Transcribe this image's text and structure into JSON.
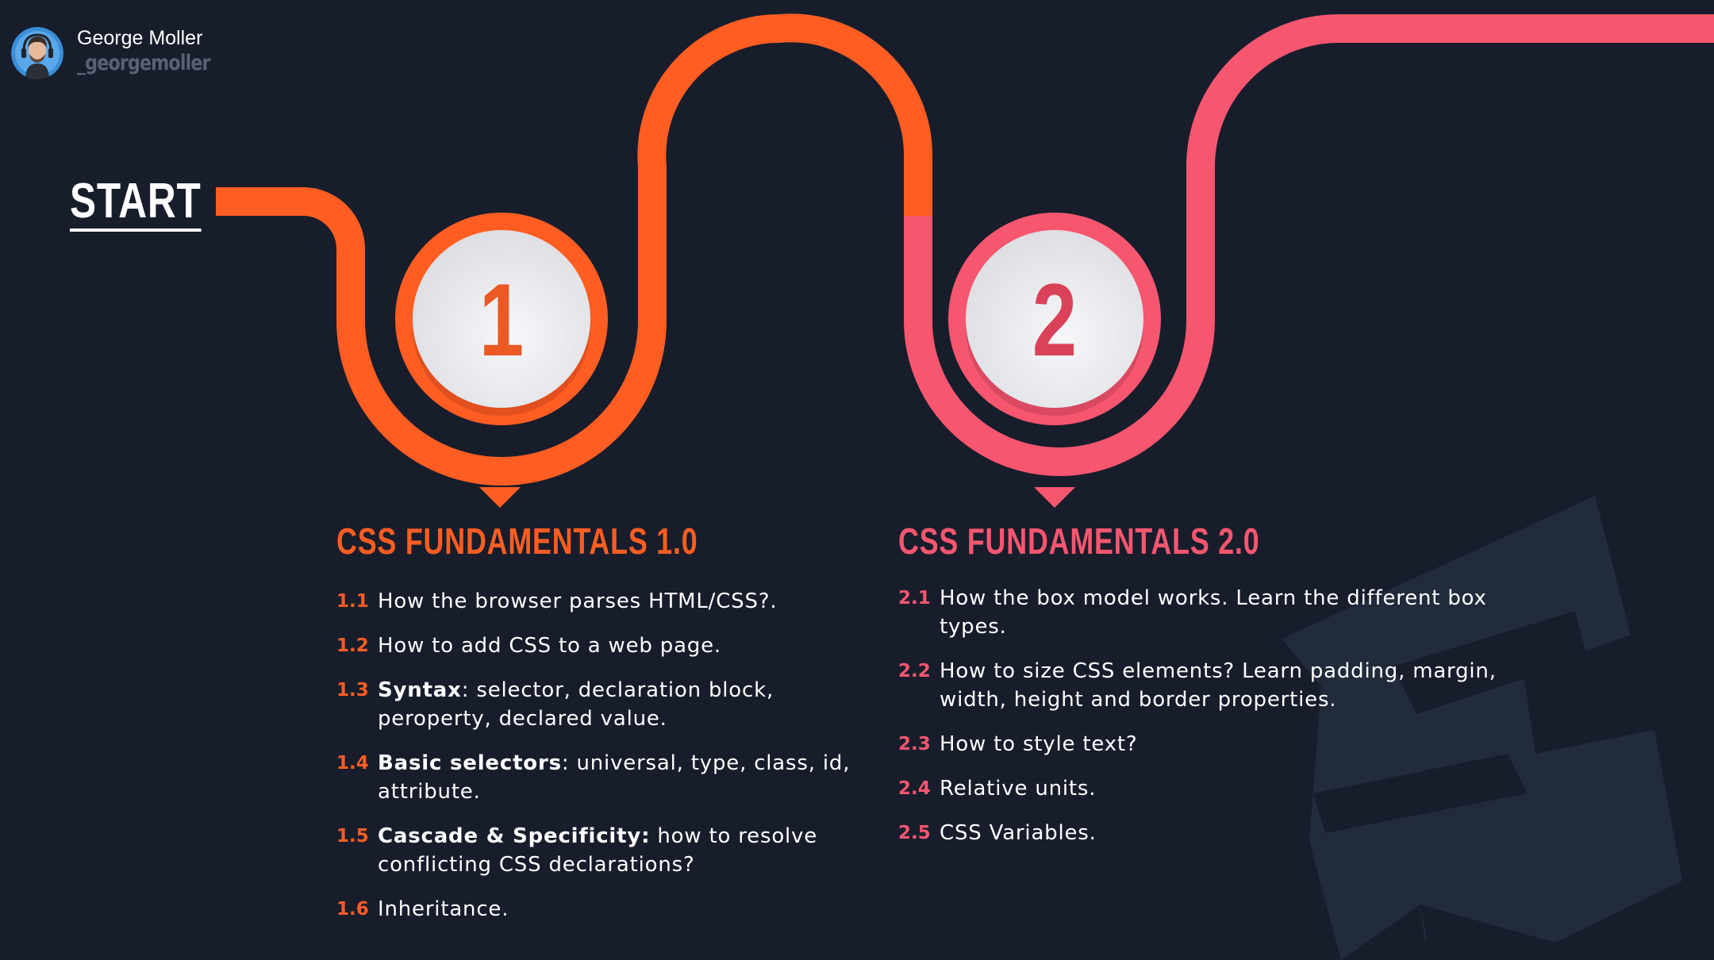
{
  "author": {
    "name": "George Moller",
    "handle": "_georgemoller"
  },
  "start_label": "START",
  "milestones": [
    {
      "number": "1",
      "color": "#ff5d22"
    },
    {
      "number": "2",
      "color": "#f7566f"
    }
  ],
  "sections": [
    {
      "title": "CSS FUNDAMENTALS 1.0",
      "color": "#ff5d22",
      "items": [
        {
          "num": "1.1",
          "bold": "",
          "text": "How the browser parses HTML/CSS?."
        },
        {
          "num": "1.2",
          "bold": "",
          "text": "How to add CSS to a web page."
        },
        {
          "num": "1.3",
          "bold": "Syntax",
          "text": ": selector, declaration block, peroperty, declared value."
        },
        {
          "num": "1.4",
          "bold": "Basic selectors",
          "text": ": universal, type, class, id, attribute."
        },
        {
          "num": "1.5",
          "bold": "Cascade & Specificity:",
          "text": " how to resolve conflicting CSS declarations?"
        },
        {
          "num": "1.6",
          "bold": "",
          "text": "Inheritance."
        }
      ]
    },
    {
      "title": "CSS FUNDAMENTALS 2.0",
      "color": "#f7566f",
      "items": [
        {
          "num": "2.1",
          "bold": "",
          "text": "How the box model works. Learn the different box types."
        },
        {
          "num": "2.2",
          "bold": "",
          "text": "How to size CSS elements? Learn padding, margin, width, height and border properties."
        },
        {
          "num": "2.3",
          "bold": "",
          "text": "How to style text?"
        },
        {
          "num": "2.4",
          "bold": "",
          "text": "Relative units."
        },
        {
          "num": "2.5",
          "bold": "",
          "text": "CSS Variables."
        }
      ]
    }
  ],
  "colors": {
    "background": "#181d2c",
    "watermark": "#222b3b",
    "badge_face": "#eceef2"
  },
  "icons": {
    "watermark": "css3-logo-watermark",
    "avatar": "avatar"
  }
}
